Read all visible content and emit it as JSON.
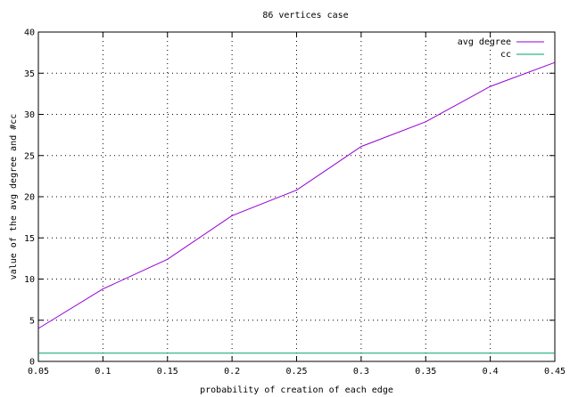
{
  "chart_data": {
    "type": "line",
    "title": "86 vertices case",
    "xlabel": "probability of creation of each edge",
    "ylabel": "value of the avg degree and #cc",
    "xlim": [
      0.05,
      0.45
    ],
    "ylim": [
      0,
      40
    ],
    "xticks": [
      0.05,
      0.1,
      0.15,
      0.2,
      0.25,
      0.3,
      0.35,
      0.4,
      0.45
    ],
    "xtick_labels": [
      "0.05",
      "0.1",
      "0.15",
      "0.2",
      "0.25",
      "0.3",
      "0.35",
      "0.4",
      "0.45"
    ],
    "yticks": [
      0,
      5,
      10,
      15,
      20,
      25,
      30,
      35,
      40
    ],
    "ytick_labels": [
      "0",
      "5",
      "10",
      "15",
      "20",
      "25",
      "30",
      "35",
      "40"
    ],
    "grid": true,
    "legend_position": "top-right",
    "x": [
      0.05,
      0.1,
      0.15,
      0.2,
      0.25,
      0.3,
      0.35,
      0.4,
      0.45
    ],
    "series": [
      {
        "name": "avg degree",
        "color": "#9400d3",
        "values": [
          4.0,
          8.8,
          12.4,
          17.7,
          20.8,
          26.1,
          29.1,
          33.4,
          36.3
        ]
      },
      {
        "name": "cc",
        "color": "#009e73",
        "values": [
          1,
          1,
          1,
          1,
          1,
          1,
          1,
          1,
          1
        ]
      }
    ]
  }
}
